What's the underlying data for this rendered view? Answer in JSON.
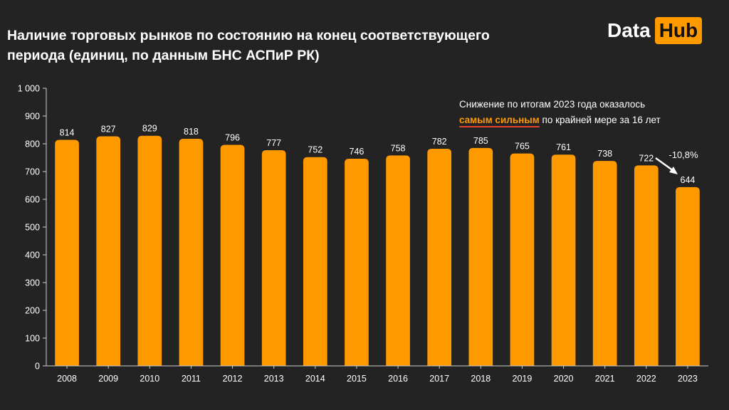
{
  "title": "Наличие торговых рынков по состоянию на конец соответствующего периода (единиц, по данным БНС АСПиР РК)",
  "logo": {
    "word1": "Data",
    "word2": "Hub"
  },
  "annotation": {
    "line1": "Снижение по итогам 2023 года оказалось",
    "highlight": "самым сильным",
    "rest": " по крайней мере за 16 лет"
  },
  "change_label": "-10,8%",
  "colors": {
    "background": "#232323",
    "bar": "#ff9900",
    "text": "#ffffff",
    "underline": "#e8402a"
  },
  "chart_data": {
    "type": "bar",
    "categories": [
      "2008",
      "2009",
      "2010",
      "2011",
      "2012",
      "2013",
      "2014",
      "2015",
      "2016",
      "2017",
      "2018",
      "2019",
      "2020",
      "2021",
      "2022",
      "2023"
    ],
    "values": [
      814,
      827,
      829,
      818,
      796,
      777,
      752,
      746,
      758,
      782,
      785,
      765,
      761,
      738,
      722,
      644
    ],
    "ylim": [
      0,
      1000
    ],
    "yticks": [
      0,
      100,
      200,
      300,
      400,
      500,
      600,
      700,
      800,
      900,
      1000
    ],
    "ytick_labels": [
      "0",
      "100",
      "200",
      "300",
      "400",
      "500",
      "600",
      "700",
      "800",
      "900",
      "1 000"
    ],
    "grid": false,
    "data_labels": true
  }
}
